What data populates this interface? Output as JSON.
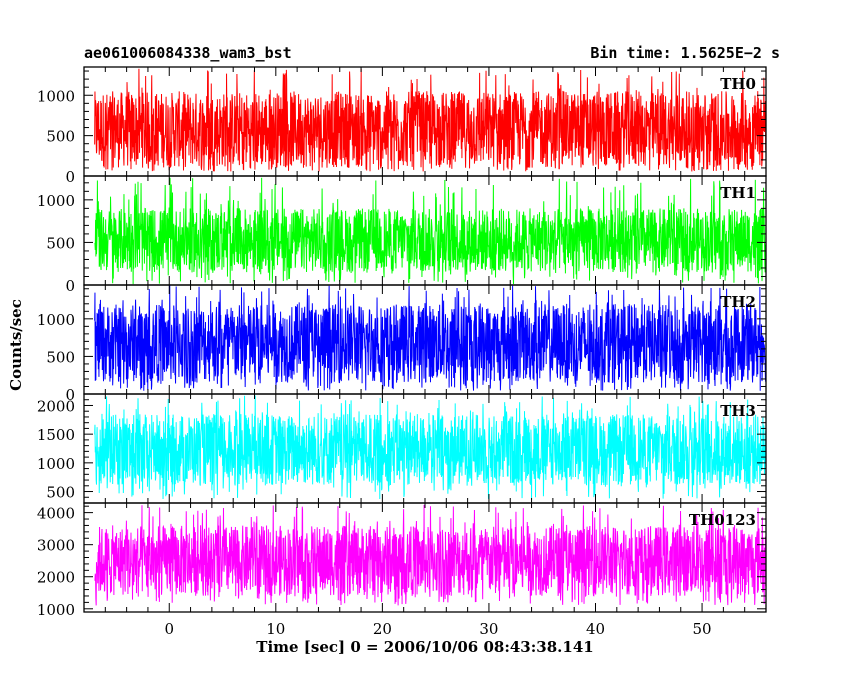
{
  "header": {
    "title": "ae061006084338_wam3_bst",
    "bin_time": "Bin time: 1.5625E−2 s"
  },
  "chart_data": {
    "type": "line",
    "xlabel": "Time [sec] 0 = 2006/10/06 08:43:38.141",
    "ylabel": "Counts/sec",
    "xlim": [
      -8,
      56
    ],
    "x_ticks": [
      "0",
      "10",
      "20",
      "30",
      "40",
      "50"
    ],
    "x_tick_values": [
      0,
      10,
      20,
      30,
      40,
      50
    ],
    "grid": false,
    "panels": [
      {
        "name": "TH0",
        "color": "#ff0000",
        "ylim": [
          0,
          1350
        ],
        "y_ticks": [
          0,
          500,
          1000
        ],
        "series": {
          "x_range": [
            -7,
            56
          ],
          "base": 55,
          "typical_low": 100,
          "typical_high": 1050,
          "peak": 1330
        }
      },
      {
        "name": "TH1",
        "color": "#00ff00",
        "ylim": [
          0,
          1280
        ],
        "y_ticks": [
          0,
          500,
          1000
        ],
        "series": {
          "x_range": [
            -7,
            56
          ],
          "base": 10,
          "typical_low": 150,
          "typical_high": 900,
          "peak": 1260
        }
      },
      {
        "name": "TH2",
        "color": "#0000ff",
        "ylim": [
          0,
          1450
        ],
        "y_ticks": [
          0,
          500,
          1000
        ],
        "series": {
          "x_range": [
            -7,
            56
          ],
          "base": 40,
          "typical_low": 150,
          "typical_high": 1200,
          "peak": 1450
        }
      },
      {
        "name": "TH3",
        "color": "#00ffff",
        "ylim": [
          300,
          2200
        ],
        "y_ticks": [
          500,
          1000,
          1500,
          2000
        ],
        "series": {
          "x_range": [
            -7,
            56
          ],
          "base": 350,
          "typical_low": 600,
          "typical_high": 1850,
          "peak": 2180
        }
      },
      {
        "name": "TH0123",
        "color": "#ff00ff",
        "ylim": [
          900,
          4300
        ],
        "y_ticks": [
          1000,
          2000,
          3000,
          4000
        ],
        "series": {
          "x_range": [
            -7,
            56
          ],
          "base": 1100,
          "typical_low": 1400,
          "typical_high": 3600,
          "peak": 4250
        }
      }
    ]
  }
}
